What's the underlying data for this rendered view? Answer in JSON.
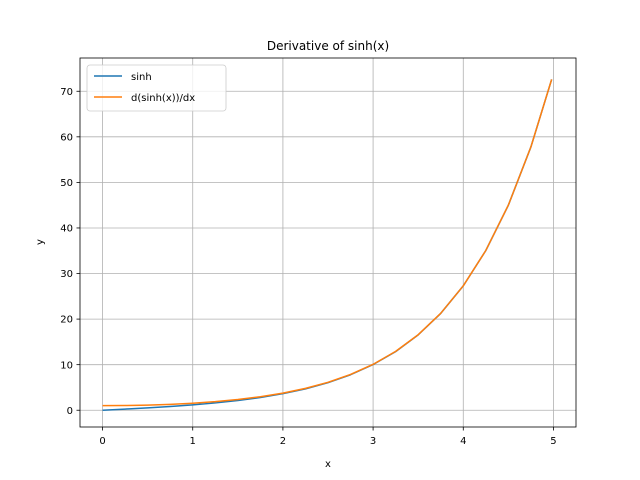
{
  "chart_data": {
    "type": "line",
    "title": "Derivative of sinh(x)",
    "xlabel": "x",
    "ylabel": "y",
    "xlim": [
      -0.25,
      5.25
    ],
    "ylim": [
      -3.68,
      77.3
    ],
    "xticks": [
      0,
      1,
      2,
      3,
      4,
      5
    ],
    "yticks": [
      0,
      10,
      20,
      30,
      40,
      50,
      60,
      70
    ],
    "grid": true,
    "legend_position": "top-left",
    "x": [
      0,
      0.25,
      0.5,
      0.75,
      1,
      1.25,
      1.5,
      1.75,
      2,
      2.25,
      2.5,
      2.75,
      3,
      3.25,
      3.5,
      3.75,
      4,
      4.25,
      4.5,
      4.75,
      4.98
    ],
    "series": [
      {
        "name": "sinh",
        "color": "#1f77b4",
        "values": [
          0,
          0.25,
          0.52,
          0.82,
          1.18,
          1.6,
          2.13,
          2.79,
          3.63,
          4.69,
          6.05,
          7.79,
          10.02,
          12.87,
          16.54,
          21.25,
          27.29,
          35.05,
          45.0,
          57.78,
          72.6
        ]
      },
      {
        "name": "d(sinh(x))/dx",
        "color": "#ff7f0e",
        "values": [
          1.0,
          1.03,
          1.13,
          1.29,
          1.54,
          1.89,
          2.35,
          2.96,
          3.76,
          4.8,
          6.13,
          7.85,
          10.07,
          12.91,
          16.57,
          21.27,
          27.31,
          35.06,
          45.01,
          57.79,
          72.61
        ]
      }
    ]
  }
}
